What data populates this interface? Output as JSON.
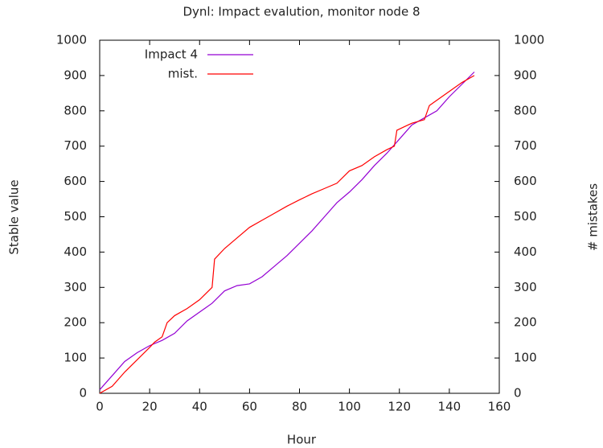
{
  "chart_data": {
    "type": "line",
    "title": "Dynl: Impact evalution, monitor node 8",
    "xlabel": "Hour",
    "ylabel": "Stable value",
    "y2label": "# mistakes",
    "xlim": [
      0,
      160
    ],
    "xticks": [
      0,
      20,
      40,
      60,
      80,
      100,
      120,
      140,
      160
    ],
    "ylim": [
      0,
      1000
    ],
    "yticks": [
      0,
      100,
      200,
      300,
      400,
      500,
      600,
      700,
      800,
      900,
      1000
    ],
    "y2lim": [
      0,
      1000
    ],
    "y2ticks": [
      0,
      100,
      200,
      300,
      400,
      500,
      600,
      700,
      800,
      900,
      1000
    ],
    "legend": "top-left",
    "series": [
      {
        "name": "Impact 4",
        "color": "#9400d3",
        "x": [
          0,
          5,
          10,
          15,
          20,
          25,
          30,
          35,
          40,
          45,
          50,
          55,
          60,
          65,
          70,
          75,
          80,
          85,
          90,
          95,
          100,
          105,
          110,
          115,
          120,
          125,
          130,
          135,
          140,
          145,
          150
        ],
        "values": [
          10,
          50,
          90,
          115,
          135,
          150,
          170,
          205,
          230,
          255,
          290,
          305,
          310,
          330,
          360,
          390,
          425,
          460,
          500,
          540,
          570,
          605,
          645,
          680,
          720,
          760,
          780,
          800,
          840,
          875,
          910
        ]
      },
      {
        "name": "mist.",
        "color": "#ff0000",
        "axis": "y2",
        "x": [
          0,
          5,
          10,
          15,
          20,
          22,
          25,
          27,
          30,
          35,
          40,
          45,
          46,
          50,
          55,
          60,
          65,
          70,
          75,
          80,
          85,
          90,
          95,
          100,
          105,
          110,
          115,
          118,
          119,
          125,
          130,
          132,
          135,
          140,
          145,
          150
        ],
        "values": [
          0,
          20,
          60,
          95,
          130,
          145,
          160,
          200,
          220,
          240,
          265,
          300,
          380,
          410,
          440,
          470,
          490,
          510,
          530,
          548,
          565,
          580,
          595,
          630,
          645,
          670,
          690,
          700,
          745,
          765,
          775,
          815,
          830,
          855,
          880,
          900
        ]
      }
    ]
  }
}
